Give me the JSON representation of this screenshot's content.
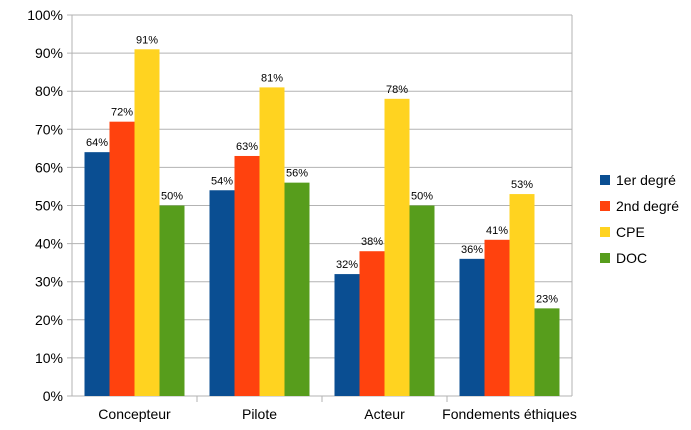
{
  "chart_data": {
    "type": "bar",
    "categories": [
      "Concepteur",
      "Pilote",
      "Acteur",
      "Fondements éthiques"
    ],
    "series": [
      {
        "name": "1er degré",
        "values": [
          64,
          54,
          32,
          36
        ],
        "color": "#0a4e92"
      },
      {
        "name": "2nd degré",
        "values": [
          72,
          63,
          38,
          41
        ],
        "color": "#ff420e"
      },
      {
        "name": "CPE",
        "values": [
          91,
          81,
          78,
          53
        ],
        "color": "#ffd320"
      },
      {
        "name": "DOC",
        "values": [
          50,
          56,
          50,
          23
        ],
        "color": "#579d1c"
      }
    ],
    "value_suffix": "%",
    "ylim": [
      0,
      100
    ],
    "yticks": [
      "0%",
      "10%",
      "20%",
      "30%",
      "40%",
      "50%",
      "60%",
      "70%",
      "80%",
      "90%",
      "100%"
    ],
    "grid": true,
    "legend_position": "right",
    "title": "",
    "xlabel": "",
    "ylabel": ""
  }
}
